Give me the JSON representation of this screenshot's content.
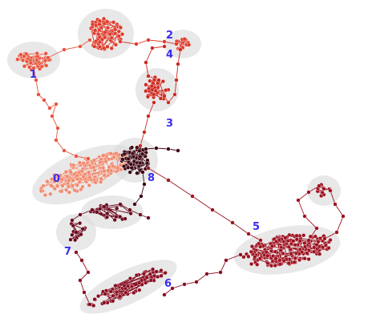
{
  "diagram": {
    "clusters": [
      {
        "label": "0",
        "color": "#f08a6e"
      },
      {
        "label": "1",
        "color": "#e8553e"
      },
      {
        "label": "2",
        "color": "#df3a2a"
      },
      {
        "label": "3",
        "color": "#cc2a20"
      },
      {
        "label": "4",
        "color": "#d63325"
      },
      {
        "label": "5",
        "color": "#9d1321"
      },
      {
        "label": "6",
        "color": "#8a0e22"
      },
      {
        "label": "7",
        "color": "#6b0a1d"
      },
      {
        "label": "8",
        "color": "#3d0713"
      }
    ],
    "label_color": "#3a2cf0",
    "halo_color": "#dcdcdc"
  }
}
